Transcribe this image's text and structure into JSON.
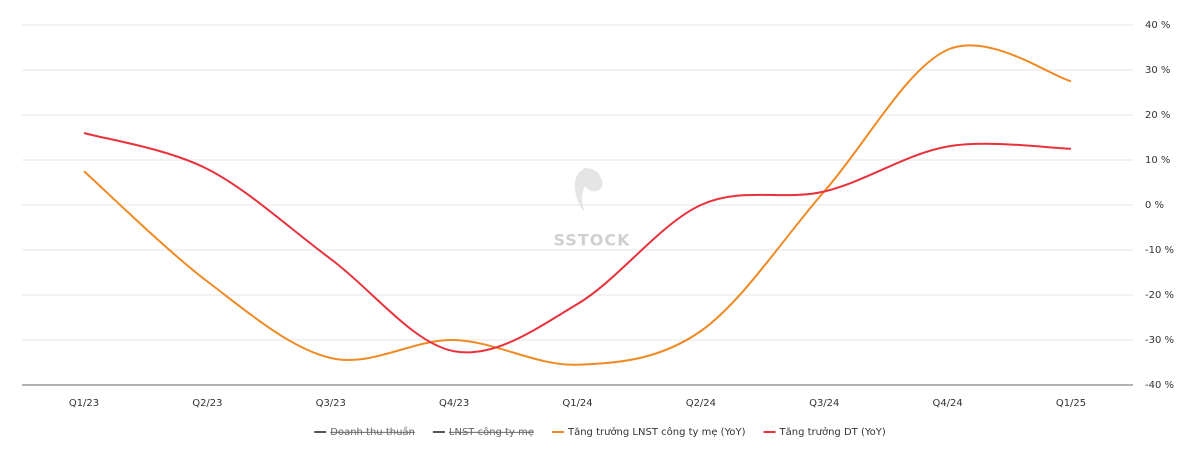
{
  "chart_data": {
    "type": "line",
    "watermark": "SSTOCK",
    "categories": [
      "Q1/23",
      "Q2/23",
      "Q3/23",
      "Q4/23",
      "Q1/24",
      "Q2/24",
      "Q3/24",
      "Q4/24",
      "Q1/25"
    ],
    "series": [
      {
        "name": "Doanh thu thuần",
        "color": "#555555",
        "visible": false
      },
      {
        "name": "LNST công ty mẹ",
        "color": "#555555",
        "visible": false
      },
      {
        "name": "Tăng trưởng LNST công ty mẹ (YoY)",
        "color": "#f08a24",
        "visible": true,
        "values": [
          7.5,
          -17,
          -34,
          -30,
          -35.5,
          -28,
          3,
          34.5,
          27.5
        ]
      },
      {
        "name": "Tăng trưởng DT (YoY)",
        "color": "#e8323c",
        "visible": true,
        "values": [
          16,
          8,
          -12,
          -32.5,
          -22,
          0,
          3,
          13,
          12.5
        ]
      }
    ],
    "ylim": [
      -40,
      40
    ],
    "yticks": [
      {
        "value": -40,
        "label": "-40 %"
      },
      {
        "value": -30,
        "label": "-30 %"
      },
      {
        "value": -20,
        "label": "-20 %"
      },
      {
        "value": -10,
        "label": "-10 %"
      },
      {
        "value": 0,
        "label": "0 %"
      },
      {
        "value": 10,
        "label": "10 %"
      },
      {
        "value": 20,
        "label": "20 %"
      },
      {
        "value": 30,
        "label": "30 %"
      },
      {
        "value": 40,
        "label": "40 %"
      }
    ],
    "yaxis_side": "right",
    "grid": true
  }
}
